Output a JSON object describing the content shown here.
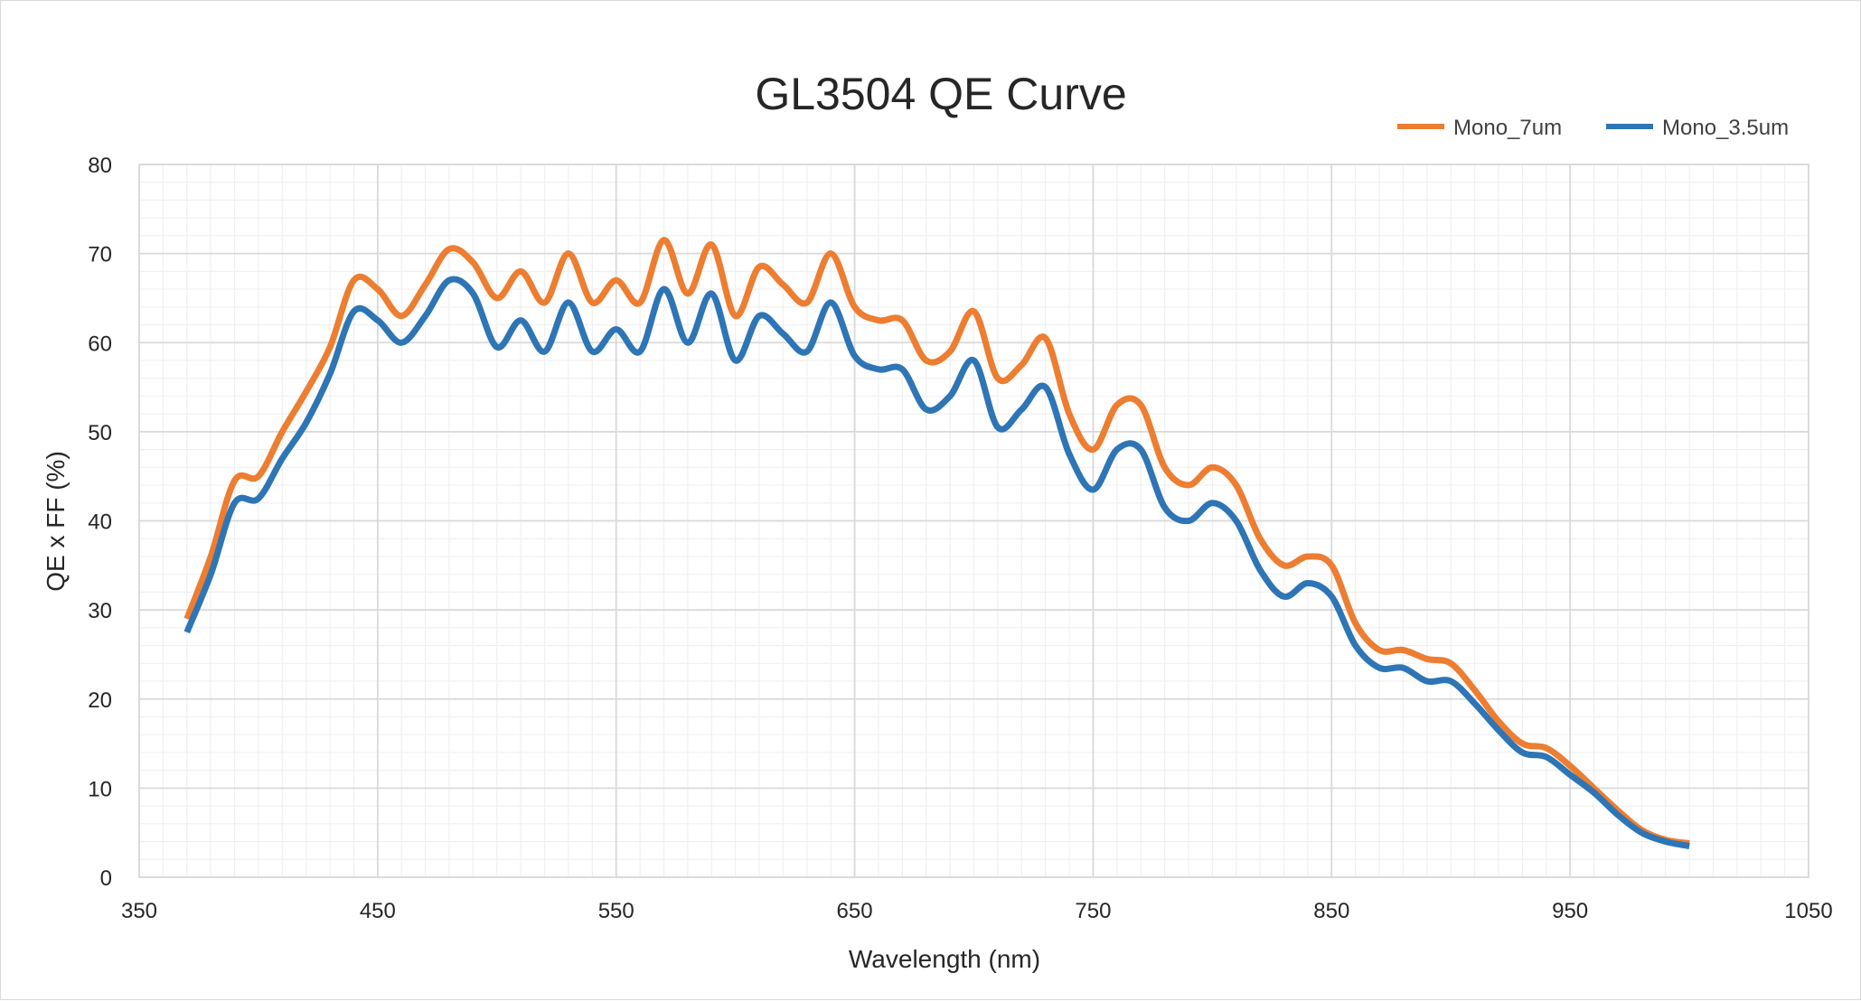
{
  "chart_data": {
    "type": "line",
    "title": "GL3504 QE Curve",
    "xlabel": "Wavelength (nm)",
    "ylabel": "QE x FF (%)",
    "xlim": [
      350,
      1050
    ],
    "ylim": [
      0,
      80
    ],
    "x_major_ticks": [
      350,
      450,
      550,
      650,
      750,
      850,
      950,
      1050
    ],
    "y_major_ticks": [
      0,
      10,
      20,
      30,
      40,
      50,
      60,
      70,
      80
    ],
    "grid": "major and minor",
    "legend_position": "top-right",
    "series": [
      {
        "name": "Mono_7um",
        "color": "#ED7D31",
        "points": [
          [
            370,
            29
          ],
          [
            380,
            36
          ],
          [
            390,
            44.5
          ],
          [
            400,
            45
          ],
          [
            410,
            50
          ],
          [
            420,
            54.5
          ],
          [
            430,
            59.5
          ],
          [
            440,
            67
          ],
          [
            450,
            66
          ],
          [
            460,
            63
          ],
          [
            470,
            66.5
          ],
          [
            480,
            70.5
          ],
          [
            490,
            69
          ],
          [
            500,
            65
          ],
          [
            510,
            68
          ],
          [
            520,
            64.5
          ],
          [
            530,
            70
          ],
          [
            540,
            64.5
          ],
          [
            550,
            67
          ],
          [
            560,
            64.5
          ],
          [
            570,
            71.5
          ],
          [
            580,
            65.5
          ],
          [
            590,
            71
          ],
          [
            600,
            63
          ],
          [
            610,
            68.5
          ],
          [
            620,
            66.5
          ],
          [
            630,
            64.5
          ],
          [
            640,
            70
          ],
          [
            650,
            64
          ],
          [
            660,
            62.5
          ],
          [
            670,
            62.5
          ],
          [
            680,
            58
          ],
          [
            690,
            59
          ],
          [
            700,
            63.5
          ],
          [
            710,
            56
          ],
          [
            720,
            57.5
          ],
          [
            730,
            60.5
          ],
          [
            740,
            52
          ],
          [
            750,
            48
          ],
          [
            760,
            53
          ],
          [
            770,
            53
          ],
          [
            780,
            46
          ],
          [
            790,
            44
          ],
          [
            800,
            46
          ],
          [
            810,
            44
          ],
          [
            820,
            38
          ],
          [
            830,
            35
          ],
          [
            840,
            36
          ],
          [
            850,
            35
          ],
          [
            860,
            28.5
          ],
          [
            870,
            25.5
          ],
          [
            880,
            25.5
          ],
          [
            890,
            24.5
          ],
          [
            900,
            24
          ],
          [
            910,
            21
          ],
          [
            920,
            17.5
          ],
          [
            930,
            15
          ],
          [
            940,
            14.5
          ],
          [
            950,
            12.5
          ],
          [
            960,
            10
          ],
          [
            970,
            7.5
          ],
          [
            980,
            5.3
          ],
          [
            990,
            4.2
          ],
          [
            1000,
            3.8
          ]
        ]
      },
      {
        "name": "Mono_3.5um",
        "color": "#2E75B6",
        "points": [
          [
            370,
            27.5
          ],
          [
            380,
            34
          ],
          [
            390,
            42
          ],
          [
            400,
            42.5
          ],
          [
            410,
            47
          ],
          [
            420,
            51
          ],
          [
            430,
            56.5
          ],
          [
            440,
            63.5
          ],
          [
            450,
            62.5
          ],
          [
            460,
            60
          ],
          [
            470,
            63
          ],
          [
            480,
            67
          ],
          [
            490,
            65.5
          ],
          [
            500,
            59.5
          ],
          [
            510,
            62.5
          ],
          [
            520,
            59
          ],
          [
            530,
            64.5
          ],
          [
            540,
            59
          ],
          [
            550,
            61.5
          ],
          [
            560,
            59
          ],
          [
            570,
            66
          ],
          [
            580,
            60
          ],
          [
            590,
            65.5
          ],
          [
            600,
            58
          ],
          [
            610,
            63
          ],
          [
            620,
            61
          ],
          [
            630,
            59
          ],
          [
            640,
            64.5
          ],
          [
            650,
            58.5
          ],
          [
            660,
            57
          ],
          [
            670,
            57
          ],
          [
            680,
            52.5
          ],
          [
            690,
            54
          ],
          [
            700,
            58
          ],
          [
            710,
            50.5
          ],
          [
            720,
            52.5
          ],
          [
            730,
            55
          ],
          [
            740,
            47.5
          ],
          [
            750,
            43.5
          ],
          [
            760,
            48
          ],
          [
            770,
            48
          ],
          [
            780,
            41.5
          ],
          [
            790,
            40
          ],
          [
            800,
            42
          ],
          [
            810,
            40
          ],
          [
            820,
            34.5
          ],
          [
            830,
            31.5
          ],
          [
            840,
            33
          ],
          [
            850,
            31.5
          ],
          [
            860,
            26
          ],
          [
            870,
            23.5
          ],
          [
            880,
            23.5
          ],
          [
            890,
            22
          ],
          [
            900,
            22
          ],
          [
            910,
            19.5
          ],
          [
            920,
            16.5
          ],
          [
            930,
            14
          ],
          [
            940,
            13.5
          ],
          [
            950,
            11.5
          ],
          [
            960,
            9.5
          ],
          [
            970,
            7
          ],
          [
            980,
            5
          ],
          [
            990,
            4
          ],
          [
            1000,
            3.5
          ]
        ]
      }
    ]
  }
}
